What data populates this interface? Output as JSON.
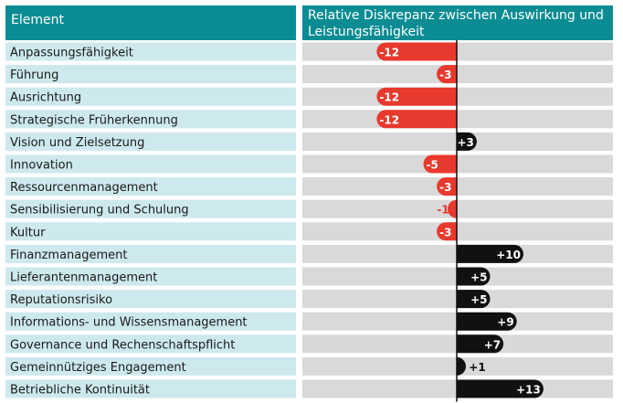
{
  "header": {
    "element_label": "Element",
    "value_title_line1": "Relative Diskrepanz zwischen Auswirkung und",
    "value_title_line2": "Leistungsfähigkeit"
  },
  "chart_data": {
    "type": "bar",
    "orientation": "horizontal",
    "title": "Relative Diskrepanz zwischen Auswirkung und Leistungsfähigkeit",
    "categories": [
      "Anpassungsfähigkeit",
      "Führung",
      "Ausrichtung",
      "Strategische Früherkennung",
      "Vision und Zielsetzung",
      "Innovation",
      "Ressourcenmanagement",
      "Sensibilisierung und Schulung",
      "Kultur",
      "Finanzmanagement",
      "Lieferantenmanagement",
      "Reputationsrisiko",
      "Informations- und Wissensmanagement",
      "Governance und Rechenschaftspflicht",
      "Gemeinnütziges Engagement",
      "Betriebliche Kontinuität"
    ],
    "values": [
      -12,
      -3,
      -12,
      -12,
      3,
      -5,
      -3,
      -1,
      -3,
      10,
      5,
      5,
      9,
      7,
      1,
      13
    ],
    "value_labels": [
      "-12",
      "-3",
      "-12",
      "-12",
      "+3",
      "-5",
      "-3",
      "-1",
      "-3",
      "+10",
      "+5",
      "+5",
      "+9",
      "+7",
      "+1",
      "+13"
    ],
    "xlim": [
      -15,
      15
    ],
    "colors": {
      "negative": "#e8392e",
      "positive": "#111111",
      "header": "#0b8c93",
      "label_bg": "#cde9ee",
      "row_bg": "#d9d9d9"
    }
  }
}
